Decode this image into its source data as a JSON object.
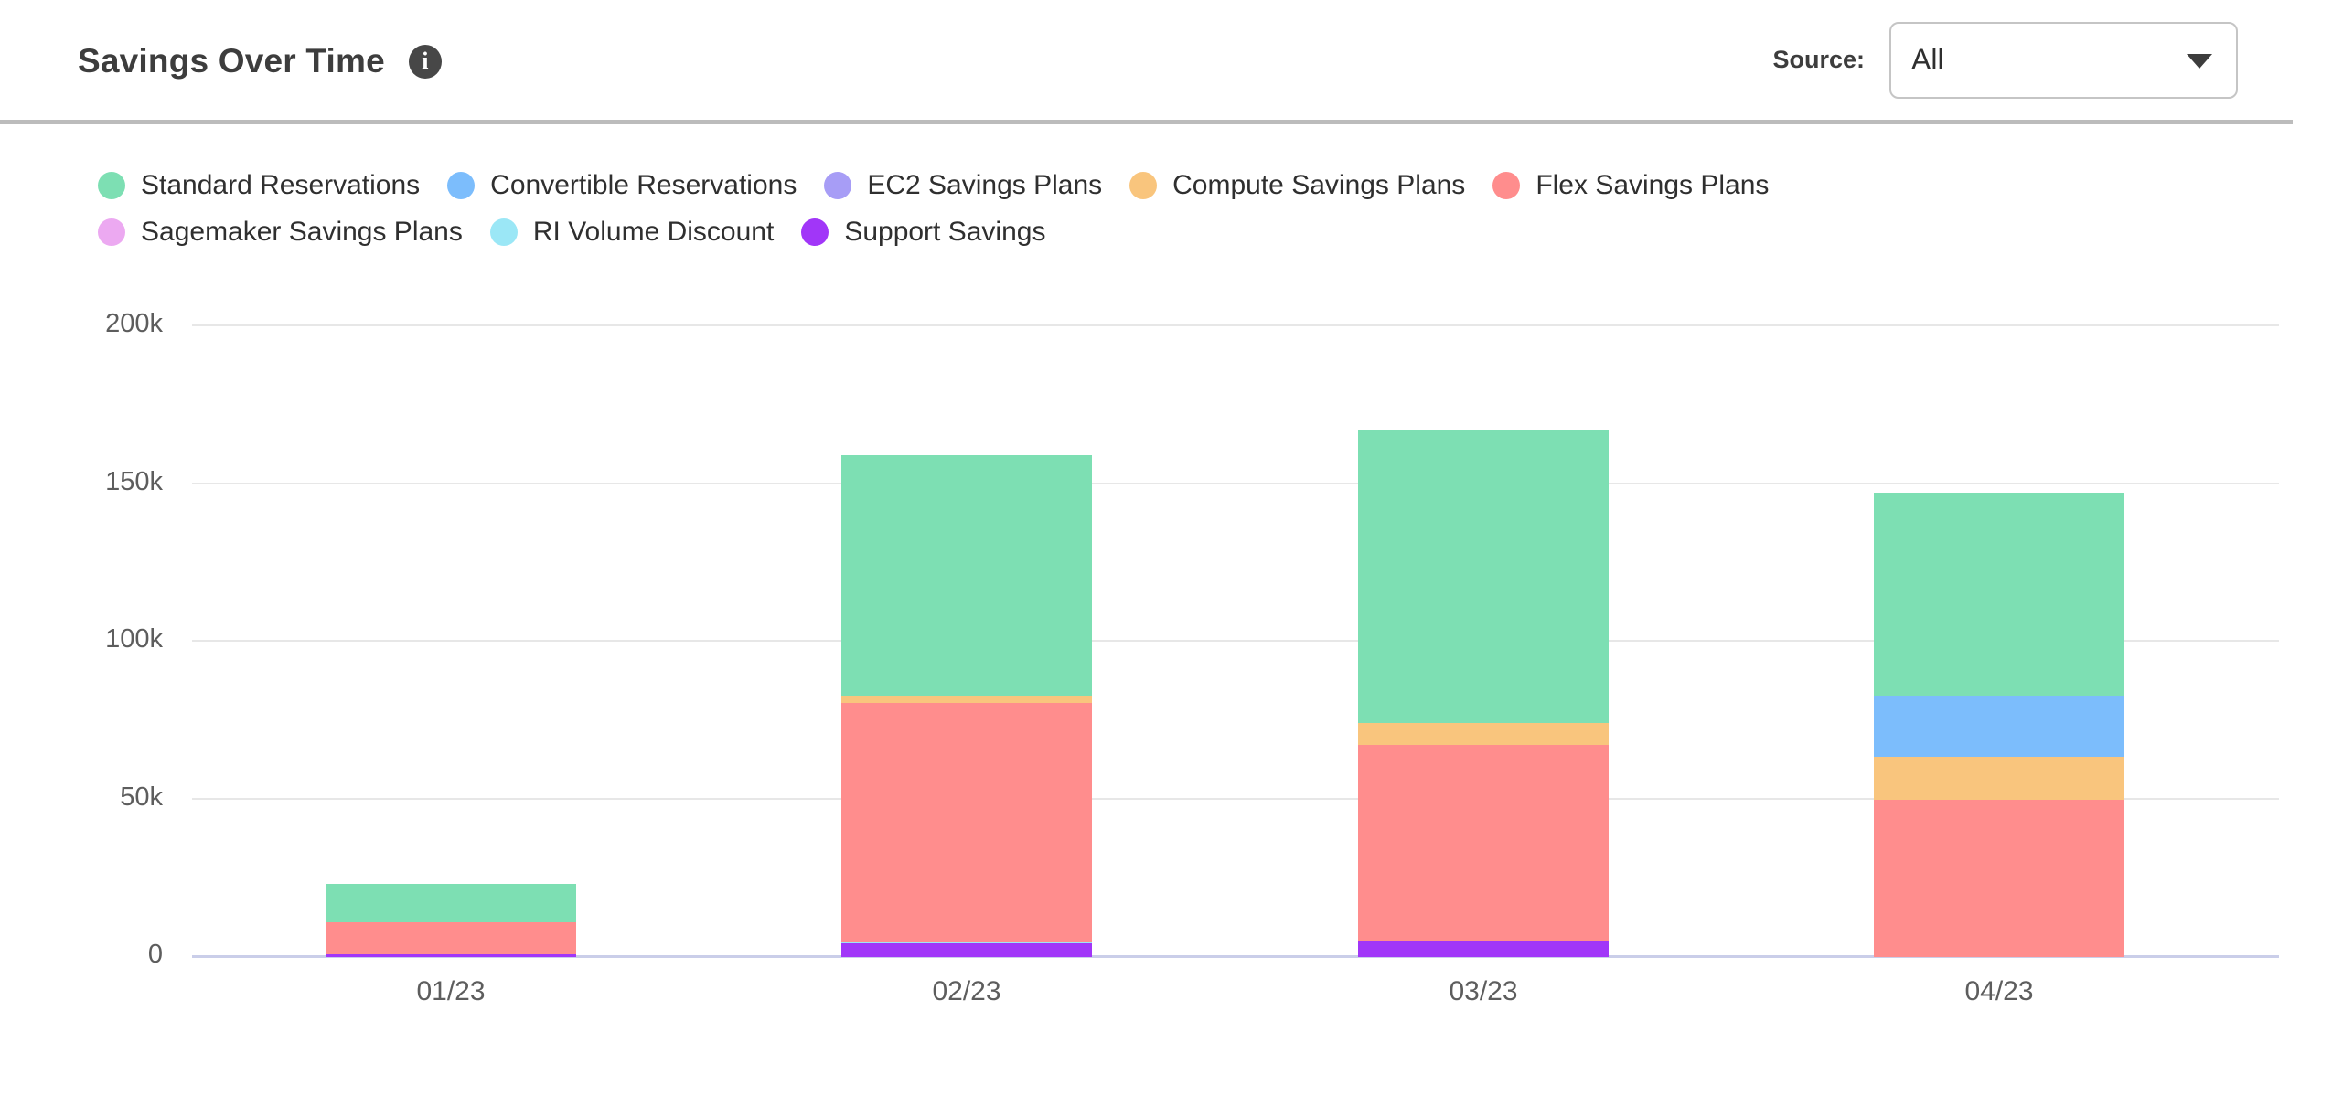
{
  "header": {
    "title": "Savings Over Time",
    "info_glyph": "i",
    "source_label": "Source:",
    "source_value": "All"
  },
  "chart_data": {
    "type": "bar",
    "stacked": true,
    "title": "Savings Over Time",
    "categories": [
      "01/23",
      "02/23",
      "03/23",
      "04/23"
    ],
    "series": [
      {
        "name": "Standard Reservations",
        "color": "#7DDFB3",
        "values": [
          12300,
          76300,
          93200,
          64500
        ]
      },
      {
        "name": "Convertible Reservations",
        "color": "#7CBDFC",
        "values": [
          0,
          0,
          0,
          19300
        ]
      },
      {
        "name": "EC2 Savings Plans",
        "color": "#A79DF6",
        "values": [
          0,
          0,
          0,
          0
        ]
      },
      {
        "name": "Compute Savings Plans",
        "color": "#F9C57D",
        "values": [
          0,
          2400,
          6900,
          13500
        ]
      },
      {
        "name": "Flex Savings Plans",
        "color": "#FF8D8D",
        "values": [
          10000,
          75800,
          62300,
          50000
        ]
      },
      {
        "name": "Sagemaker Savings Plans",
        "color": "#ECA9F1",
        "values": [
          0,
          0,
          0,
          0
        ]
      },
      {
        "name": "RI Volume Discount",
        "color": "#9BE7F6",
        "values": [
          0,
          400,
          0,
          0
        ]
      },
      {
        "name": "Support Savings",
        "color": "#A136F8",
        "values": [
          1000,
          4300,
          4900,
          0
        ]
      }
    ],
    "ylim": [
      0,
      200000
    ],
    "y_ticks": [
      {
        "value": 200000,
        "label": "200k"
      },
      {
        "value": 150000,
        "label": "150k"
      },
      {
        "value": 100000,
        "label": "100k"
      },
      {
        "value": 50000,
        "label": "50k"
      },
      {
        "value": 0,
        "label": "0"
      }
    ],
    "grid": "horizontal",
    "legend_position": "top",
    "legend_rows": [
      5,
      3
    ]
  }
}
